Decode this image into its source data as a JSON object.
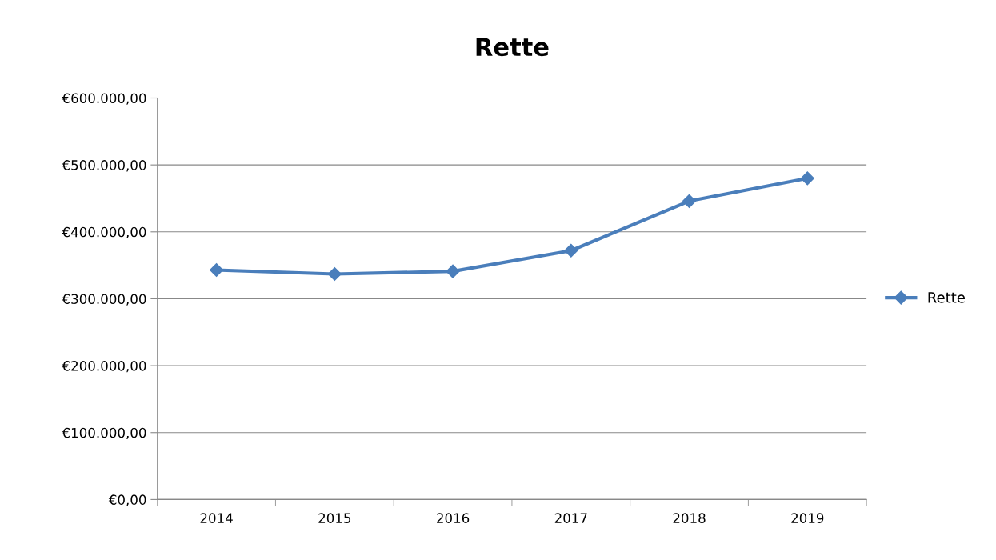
{
  "chart_data": {
    "type": "line",
    "title": "Rette",
    "categories": [
      "2014",
      "2015",
      "2016",
      "2017",
      "2018",
      "2019"
    ],
    "series": [
      {
        "name": "Rette",
        "color": "#4a7ebb",
        "values": [
          343000,
          337000,
          341000,
          372000,
          446000,
          480000
        ]
      }
    ],
    "ylim": [
      0,
      600000
    ],
    "yticks": [
      {
        "value": 0,
        "label": "€0,00"
      },
      {
        "value": 100000,
        "label": "€100.000,00"
      },
      {
        "value": 200000,
        "label": "€200.000,00"
      },
      {
        "value": 300000,
        "label": "€300.000,00"
      },
      {
        "value": 400000,
        "label": "€400.000,00"
      },
      {
        "value": 500000,
        "label": "€500.000,00"
      },
      {
        "value": 600000,
        "label": "€600.000,00"
      }
    ],
    "grid": "y",
    "legend": "right",
    "marker": "diamond",
    "line_style": "solid"
  }
}
